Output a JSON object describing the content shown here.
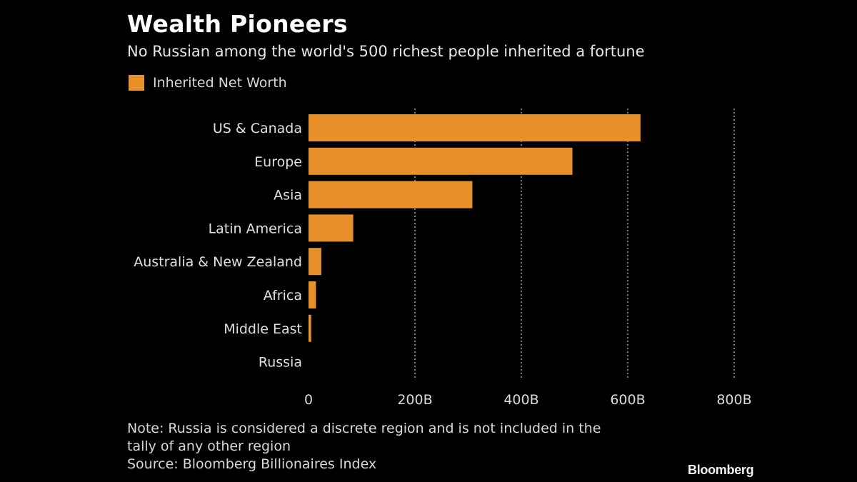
{
  "colors": {
    "background": "#000000",
    "bar": "#E8912A",
    "grid": "#9a9a9a",
    "text": "#e6e6e6"
  },
  "chart_data": {
    "type": "bar",
    "orientation": "horizontal",
    "title": "Wealth Pioneers",
    "subtitle": "No Russian among the world's 500 richest people inherited a fortune",
    "categories": [
      "US & Canada",
      "Europe",
      "Asia",
      "Latin America",
      "Australia & New Zealand",
      "Africa",
      "Middle East",
      "Russia"
    ],
    "series": [
      {
        "name": "Inherited Net Worth",
        "values": [
          624,
          496,
          308,
          84,
          24,
          14,
          5,
          0
        ]
      }
    ],
    "xlim": [
      0,
      800
    ],
    "xticks": [
      0,
      200,
      400,
      600,
      800
    ],
    "xtick_labels": [
      "0",
      "200B",
      "400B",
      "600B",
      "800B"
    ],
    "grid": "vertical dotted",
    "legend": "top-left"
  },
  "note_lines": [
    "Note: Russia is considered a discrete region and is not included in the",
    "tally of any other region",
    "Source: Bloomberg Billionaires Index"
  ],
  "brand": "Bloomberg"
}
